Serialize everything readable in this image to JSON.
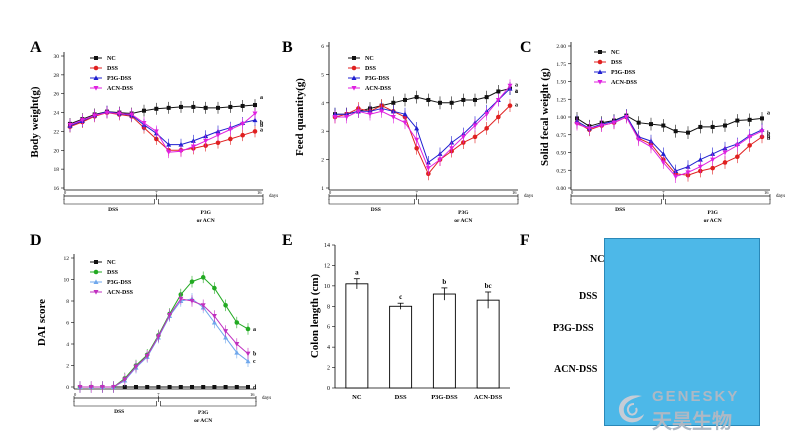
{
  "panels": {
    "A": {
      "letter": "A",
      "ylabel": "Body weight(g)"
    },
    "B": {
      "letter": "B",
      "ylabel": "Feed quantity(g)"
    },
    "C": {
      "letter": "C",
      "ylabel": "Solid fecal weight (g)"
    },
    "D": {
      "letter": "D",
      "ylabel": "DAI score"
    },
    "E": {
      "letter": "E",
      "ylabel": "Colon length (cm)"
    },
    "F": {
      "letter": "F"
    }
  },
  "phase_labels": {
    "dss": "DSS",
    "p3g_line1": "P3G",
    "p3g_line2": "or ACN",
    "days": "days",
    "start": "0",
    "break": "7",
    "end": "16"
  },
  "legend": [
    "NC",
    "DSS",
    "P3G-DSS",
    "ACN-DSS"
  ],
  "colors": {
    "NC": "#111111",
    "DSS": "#e02020",
    "P3G-DSS": "#2020d0",
    "ACN-DSS": "#e020e0",
    "D_NC": "#111111",
    "D_DSS": "#22aa22",
    "D_P3G-DSS": "#70a8ec",
    "D_ACN-DSS": "#c030c0"
  },
  "photo_labels": [
    "NC",
    "DSS",
    "P3G-DSS",
    "ACN-DSS"
  ],
  "watermark": {
    "line1": "GENESKY",
    "line2": "天昊生物"
  },
  "chart_data": [
    {
      "id": "A",
      "type": "line",
      "ylabel": "Body weight(g)",
      "x": [
        1,
        2,
        3,
        4,
        5,
        6,
        7,
        8,
        9,
        10,
        11,
        12,
        13,
        14,
        15,
        16
      ],
      "ylim": [
        16,
        30
      ],
      "yticks": [
        16,
        18,
        20,
        22,
        24,
        26,
        28,
        30
      ],
      "series": [
        {
          "name": "NC",
          "values": [
            22.8,
            23.3,
            23.8,
            24.1,
            24.0,
            23.9,
            24.2,
            24.4,
            24.5,
            24.6,
            24.6,
            24.5,
            24.5,
            24.6,
            24.7,
            24.8
          ]
        },
        {
          "name": "DSS",
          "values": [
            22.5,
            23.0,
            23.6,
            24.0,
            23.8,
            23.6,
            22.4,
            21.2,
            20.0,
            20.0,
            20.2,
            20.5,
            20.8,
            21.2,
            21.6,
            22.0
          ]
        },
        {
          "name": "P3G-DSS",
          "values": [
            22.6,
            23.1,
            23.7,
            24.1,
            23.9,
            23.7,
            22.7,
            21.8,
            20.6,
            20.6,
            21.0,
            21.5,
            22.0,
            22.4,
            22.9,
            23.2
          ]
        },
        {
          "name": "ACN-DSS",
          "values": [
            22.7,
            23.2,
            23.7,
            24.0,
            23.9,
            23.8,
            22.9,
            22.0,
            19.8,
            19.9,
            20.4,
            21.0,
            21.6,
            22.2,
            22.8,
            23.9
          ]
        }
      ],
      "sig": [
        "a",
        "a",
        "b",
        "b"
      ]
    },
    {
      "id": "B",
      "type": "line",
      "ylabel": "Feed quantity(g)",
      "x": [
        1,
        2,
        3,
        4,
        5,
        6,
        7,
        8,
        9,
        10,
        11,
        12,
        13,
        14,
        15,
        16
      ],
      "ylim": [
        1,
        6
      ],
      "yticks": [
        1,
        2,
        3,
        4,
        5,
        6
      ],
      "series": [
        {
          "name": "NC",
          "values": [
            3.6,
            3.6,
            3.7,
            3.8,
            3.9,
            4.0,
            4.1,
            4.2,
            4.1,
            4.0,
            4.0,
            4.1,
            4.1,
            4.2,
            4.4,
            4.5
          ]
        },
        {
          "name": "DSS",
          "values": [
            3.5,
            3.6,
            3.8,
            3.7,
            3.9,
            3.7,
            3.5,
            2.4,
            1.5,
            2.0,
            2.3,
            2.6,
            2.8,
            3.1,
            3.5,
            3.9
          ]
        },
        {
          "name": "P3G-DSS",
          "values": [
            3.6,
            3.6,
            3.7,
            3.7,
            3.8,
            3.7,
            3.6,
            3.1,
            1.9,
            2.2,
            2.6,
            2.9,
            3.3,
            3.7,
            4.1,
            4.5
          ]
        },
        {
          "name": "ACN-DSS",
          "values": [
            3.5,
            3.5,
            3.7,
            3.6,
            3.7,
            3.5,
            3.3,
            2.7,
            1.7,
            2.0,
            2.4,
            2.8,
            3.2,
            3.6,
            4.1,
            4.6
          ]
        }
      ],
      "sig": [
        "a",
        "a",
        "a",
        "a"
      ]
    },
    {
      "id": "C",
      "type": "line",
      "ylabel": "Solid fecal weight (g)",
      "x": [
        1,
        2,
        3,
        4,
        5,
        6,
        7,
        8,
        9,
        10,
        11,
        12,
        13,
        14,
        15,
        16
      ],
      "ylim": [
        0,
        2.0
      ],
      "yticks": [
        0,
        0.25,
        0.5,
        0.75,
        1.0,
        1.25,
        1.5,
        1.75,
        2.0
      ],
      "series": [
        {
          "name": "NC",
          "values": [
            0.98,
            0.87,
            0.92,
            0.95,
            1.02,
            0.92,
            0.9,
            0.88,
            0.8,
            0.78,
            0.86,
            0.86,
            0.88,
            0.95,
            0.96,
            0.98
          ]
        },
        {
          "name": "DSS",
          "values": [
            0.92,
            0.82,
            0.88,
            0.92,
            1.0,
            0.7,
            0.62,
            0.4,
            0.2,
            0.18,
            0.24,
            0.28,
            0.36,
            0.44,
            0.6,
            0.72
          ]
        },
        {
          "name": "P3G-DSS",
          "values": [
            0.94,
            0.84,
            0.9,
            0.94,
            1.02,
            0.72,
            0.66,
            0.48,
            0.24,
            0.3,
            0.4,
            0.48,
            0.56,
            0.62,
            0.74,
            0.82
          ]
        },
        {
          "name": "ACN-DSS",
          "values": [
            0.9,
            0.84,
            0.88,
            0.92,
            1.0,
            0.68,
            0.58,
            0.36,
            0.16,
            0.22,
            0.3,
            0.4,
            0.5,
            0.6,
            0.72,
            0.8
          ]
        }
      ],
      "sig": [
        "a",
        "b",
        "b",
        "b"
      ]
    },
    {
      "id": "D",
      "type": "line",
      "ylabel": "DAI score",
      "x": [
        1,
        2,
        3,
        4,
        5,
        6,
        7,
        8,
        9,
        10,
        11,
        12,
        13,
        14,
        15,
        16
      ],
      "ylim": [
        0,
        12
      ],
      "yticks": [
        0,
        2,
        4,
        6,
        8,
        10,
        12
      ],
      "series": [
        {
          "name": "NC",
          "values": [
            0,
            0,
            0,
            0,
            0,
            0,
            0,
            0,
            0,
            0,
            0,
            0,
            0,
            0,
            0,
            0
          ]
        },
        {
          "name": "DSS",
          "values": [
            0,
            0,
            0,
            0,
            0.8,
            2.0,
            3.0,
            4.8,
            6.8,
            8.6,
            9.8,
            10.2,
            9.2,
            7.6,
            6.0,
            5.4
          ]
        },
        {
          "name": "P3G-DSS",
          "values": [
            0,
            0,
            0,
            0,
            0.6,
            1.8,
            2.8,
            4.6,
            6.6,
            8.0,
            8.2,
            7.4,
            6.0,
            4.6,
            3.2,
            2.4
          ]
        },
        {
          "name": "ACN-DSS",
          "values": [
            0,
            0,
            0,
            0,
            0.7,
            1.9,
            2.9,
            4.7,
            6.7,
            8.2,
            8.0,
            7.6,
            6.6,
            5.2,
            4.0,
            3.1
          ]
        }
      ],
      "sig": [
        "d",
        "a",
        "c",
        "b"
      ]
    },
    {
      "id": "E",
      "type": "bar",
      "ylabel": "Colon length (cm)",
      "categories": [
        "NC",
        "DSS",
        "P3G-DSS",
        "ACN-DSS"
      ],
      "values": [
        10.2,
        8.0,
        9.2,
        8.6
      ],
      "errors": [
        0.5,
        0.3,
        0.6,
        0.8
      ],
      "sig": [
        "a",
        "c",
        "b",
        "bc"
      ],
      "ylim": [
        0,
        14
      ],
      "yticks": [
        0,
        2,
        4,
        6,
        8,
        10,
        12,
        14
      ]
    }
  ]
}
